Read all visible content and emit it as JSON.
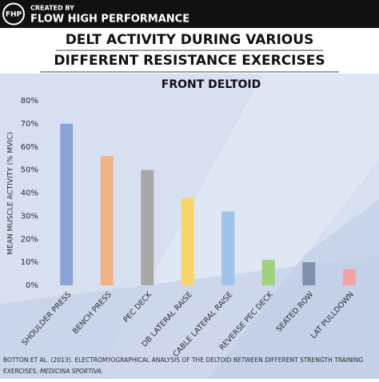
{
  "header": {
    "logo": "FHP",
    "created_by": "CREATED BY",
    "brand": "FLOW HIGH PERFORMANCE"
  },
  "chart_data": {
    "type": "bar",
    "title": [
      "DELT ACTIVITY DURING VARIOUS",
      "DIFFERENT RESISTANCE EXERCISES"
    ],
    "subtitle": "FRONT DELTOID",
    "y_label": "MEAN MUSCLE ACTIVITY (% MVIC)",
    "categories": [
      "SHOULDER PRESS",
      "BENCH PRESS",
      "PEC DECK",
      "DB LATERAL RAISE",
      "CABLE LATERAL RAISE",
      "REVERSE PEC DECK",
      "SEATED ROW",
      "LAT PULLDOWN"
    ],
    "values": [
      70,
      56,
      50,
      38,
      32,
      11,
      10,
      7
    ],
    "colors": [
      "#8ba4d8",
      "#f3b283",
      "#aaa7a7",
      "#f6d66c",
      "#9fc2e8",
      "#a0d27c",
      "#7f91ad",
      "#f3a3a3"
    ],
    "ylim": [
      0,
      80
    ],
    "yticks": [
      {
        "value": 0,
        "label": "0%"
      },
      {
        "value": 10,
        "label": "10%"
      },
      {
        "value": 20,
        "label": "20%"
      },
      {
        "value": 30,
        "label": "30%"
      },
      {
        "value": 40,
        "label": "40%"
      },
      {
        "value": 50,
        "label": "50%"
      },
      {
        "value": 60,
        "label": "60%"
      },
      {
        "value": 70,
        "label": "70%"
      },
      {
        "value": 80,
        "label": "80%"
      }
    ],
    "grid": false
  },
  "footer": {
    "citation": "BOTTON ET AL. (2013). ELECTROMYOGRAPHICAL ANALYSIS OF THE DELTOID BETWEEN DIFFERENT STRENGTH TRAINING EXERCISES.",
    "journal": "MEDICINA SPORTIVA."
  }
}
